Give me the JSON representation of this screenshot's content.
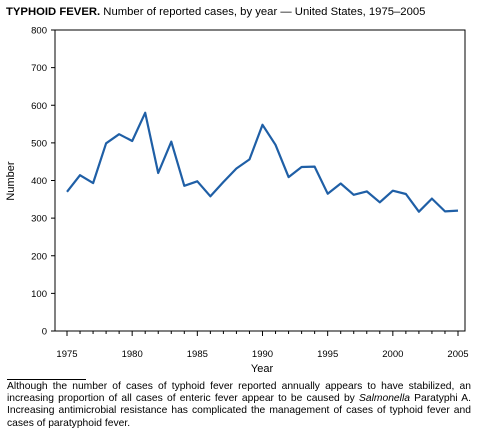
{
  "title_bold": "TYPHOID FEVER.",
  "title_rest": "Number of reported cases, by year — United States, 1975–2005",
  "footnote": {
    "part1": "Although the number of cases of typhoid fever reported annually appears to have stabilized, an increasing proportion of all cases of enteric fever appear to be caused by ",
    "italic": "Salmonella",
    "part2": " Paratyphi A. Increasing antimicrobial resistance has complicated the management of cases of typhoid fever and cases of paratyphoid fever."
  },
  "colors": {
    "line": "#1f5fa6",
    "axis": "#000000"
  },
  "chart_data": {
    "type": "line",
    "title": "TYPHOID FEVER. Number of reported cases, by year — United States, 1975–2005",
    "xlabel": "Year",
    "ylabel": "Number",
    "xlim": [
      1975,
      2005
    ],
    "ylim": [
      0,
      800
    ],
    "xticks": [
      1975,
      1980,
      1985,
      1990,
      1995,
      2000,
      2005
    ],
    "yticks": [
      0,
      100,
      200,
      300,
      400,
      500,
      600,
      700,
      800
    ],
    "grid": false,
    "series": [
      {
        "x": [
          1975,
          1976,
          1977,
          1978,
          1979,
          1980,
          1981,
          1982,
          1983,
          1984,
          1985,
          1986,
          1987,
          1988,
          1989,
          1990,
          1991,
          1992,
          1993,
          1994,
          1995,
          1996,
          1997,
          1998,
          1999,
          2000,
          2001,
          2002,
          2003,
          2004,
          2005
        ],
        "values": [
          370,
          414,
          393,
          499,
          523,
          505,
          580,
          420,
          503,
          386,
          398,
          358,
          396,
          432,
          456,
          548,
          495,
          409,
          436,
          437,
          365,
          392,
          362,
          371,
          342,
          373,
          364,
          317,
          352,
          318,
          320
        ]
      }
    ]
  }
}
